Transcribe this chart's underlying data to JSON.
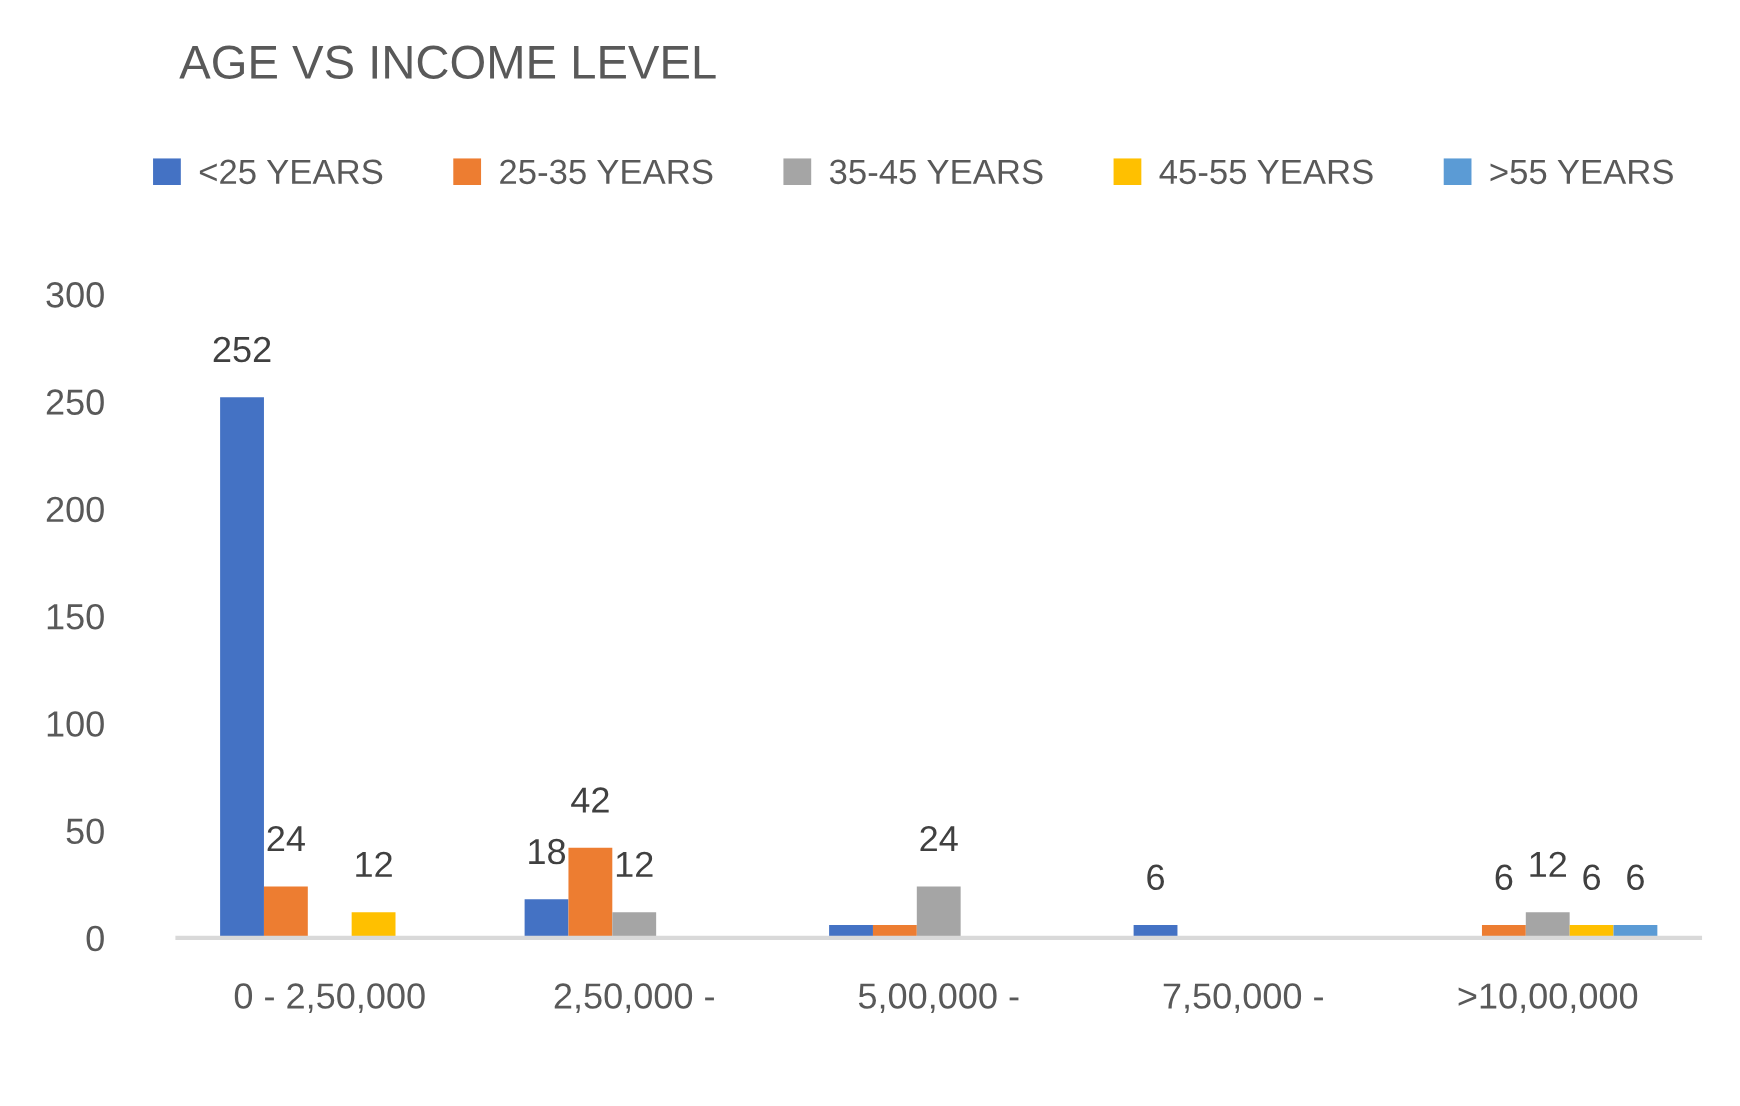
{
  "chart_data": {
    "type": "bar",
    "title": "AGE VS INCOME LEVEL",
    "categories": [
      "0 - 2,50,000",
      "2,50,000 -",
      "5,00,000 -",
      "7,50,000 -",
      ">10,00,000"
    ],
    "series": [
      {
        "name": "<25 YEARS",
        "color": "#4472c4",
        "values": [
          252,
          18,
          6,
          6,
          null
        ],
        "value_labels": [
          "252",
          "18",
          null,
          "6",
          null
        ]
      },
      {
        "name": "25-35 YEARS",
        "color": "#ed7d31",
        "values": [
          24,
          42,
          6,
          null,
          6
        ],
        "value_labels": [
          "24",
          "42",
          null,
          null,
          "6"
        ]
      },
      {
        "name": "35-45 YEARS",
        "color": "#a5a5a5",
        "values": [
          null,
          12,
          24,
          null,
          12
        ],
        "value_labels": [
          null,
          "12",
          "24",
          null,
          "12"
        ]
      },
      {
        "name": "45-55 YEARS",
        "color": "#ffc000",
        "values": [
          12,
          null,
          null,
          null,
          6
        ],
        "value_labels": [
          "12",
          null,
          null,
          null,
          "6"
        ]
      },
      {
        "name": ">55 YEARS",
        "color": "#5b9bd5",
        "values": [
          null,
          null,
          null,
          null,
          6
        ],
        "value_labels": [
          null,
          null,
          null,
          null,
          "6"
        ]
      }
    ],
    "ylim": [
      0,
      300
    ],
    "yticks": [
      0,
      50,
      100,
      150,
      200,
      250,
      300
    ],
    "grid": false,
    "legend": "top"
  }
}
